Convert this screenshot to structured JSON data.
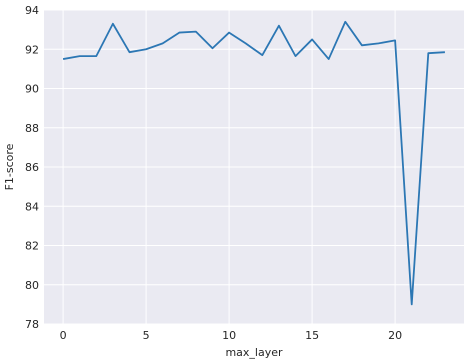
{
  "chart_data": {
    "type": "line",
    "title": "",
    "xlabel": "max_layer",
    "ylabel": "F1-score",
    "xlim": [
      -1.15,
      24.15
    ],
    "ylim": [
      78,
      94
    ],
    "xticks": [
      0,
      5,
      10,
      15,
      20
    ],
    "yticks": [
      78,
      80,
      82,
      84,
      86,
      88,
      90,
      92,
      94
    ],
    "grid": true,
    "legend": "none",
    "colors": {
      "line": "#2c77b4",
      "background": "#eaeaf2",
      "grid": "#ffffff"
    },
    "series": [
      {
        "x": [
          0,
          1,
          2,
          3,
          4,
          5,
          6,
          7,
          8,
          9,
          10,
          11,
          12,
          13,
          14,
          15,
          16,
          17,
          18,
          19,
          20,
          21,
          22,
          23
        ],
        "values": [
          91.5,
          91.65,
          91.65,
          93.3,
          91.85,
          92.0,
          92.3,
          92.85,
          92.9,
          92.05,
          92.85,
          92.3,
          91.7,
          93.2,
          91.65,
          92.5,
          91.5,
          93.4,
          92.2,
          92.3,
          92.45,
          79.0,
          91.8,
          91.85
        ]
      }
    ]
  }
}
